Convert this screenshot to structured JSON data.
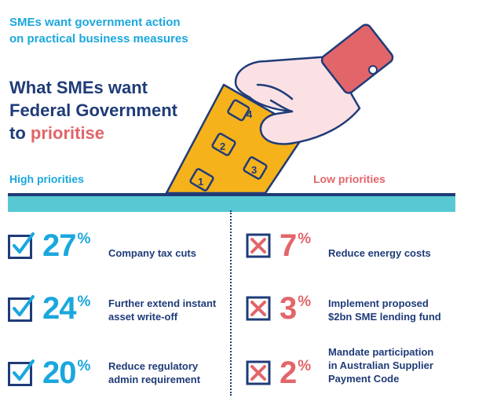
{
  "subtitle": {
    "line1": "SMEs want government action",
    "line2": "on practical business measures"
  },
  "headline": {
    "line1": "What SMEs want",
    "line2": "Federal Government",
    "line3_prefix": "to ",
    "line3_accent": "prioritise"
  },
  "columns": {
    "high_label": "High priorities",
    "low_label": "Low priorities"
  },
  "ballot_numbers": [
    "1",
    "2",
    "3",
    "4"
  ],
  "high": [
    {
      "value": "27",
      "unit": "%",
      "line1": "Company tax cuts",
      "line2": "",
      "line3": ""
    },
    {
      "value": "24",
      "unit": "%",
      "line1": "Further extend instant",
      "line2": "asset write-off",
      "line3": ""
    },
    {
      "value": "20",
      "unit": "%",
      "line1": "Reduce regulatory",
      "line2": "admin requirement",
      "line3": ""
    }
  ],
  "low": [
    {
      "value": "7",
      "unit": "%",
      "line1": "Reduce energy costs",
      "line2": "",
      "line3": ""
    },
    {
      "value": "3",
      "unit": "%",
      "line1": "Implement proposed",
      "line2": "$2bn SME lending fund",
      "line3": ""
    },
    {
      "value": "2",
      "unit": "%",
      "line1": "Mandate participation",
      "line2": "in Australian Supplier",
      "line3": "Payment Code"
    }
  ],
  "colors": {
    "navy": "#1f3b78",
    "blue": "#1aa7dd",
    "red": "#e2656a",
    "teal": "#58c9d3",
    "ballot": "#f6b21b",
    "hand": "#fbe1e4"
  }
}
